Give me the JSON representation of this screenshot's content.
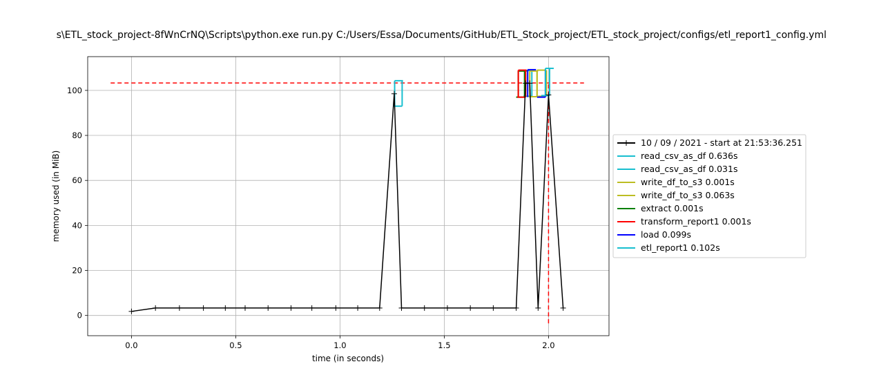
{
  "chart_data": {
    "type": "line",
    "title": "s\\ETL_stock_project-8fWnCrNQ\\Scripts\\python.exe run.py C:/Users/Essa/Documents/GitHub/ETL_Stock_project/ETL_stock_project/configs/etl_report1_config.yml",
    "xlabel": "time (in seconds)",
    "ylabel": "memory used (in MiB)",
    "xlim": [
      -0.21,
      2.29
    ],
    "ylim": [
      -9,
      115
    ],
    "xticks": [
      0.0,
      0.5,
      1.0,
      1.5,
      2.0
    ],
    "xtick_labels": [
      "0.0",
      "0.5",
      "1.0",
      "1.5",
      "2.0"
    ],
    "yticks": [
      0,
      20,
      40,
      60,
      80,
      100
    ],
    "ytick_labels": [
      "0",
      "20",
      "40",
      "60",
      "80",
      "100"
    ],
    "grid": true,
    "legend_position": "center-right outside",
    "series": [
      {
        "name": "10 / 09 / 2021 - start at 21:53:36.251",
        "color": "#000000",
        "marker": "+",
        "x": [
          0.0,
          0.115,
          0.23,
          0.345,
          0.45,
          0.545,
          0.655,
          0.765,
          0.865,
          0.98,
          1.085,
          1.19,
          1.26,
          1.295,
          1.405,
          1.515,
          1.625,
          1.735,
          1.845,
          1.89,
          1.91,
          1.95,
          2.0,
          2.07
        ],
        "y": [
          1.8,
          3.3,
          3.3,
          3.3,
          3.3,
          3.3,
          3.3,
          3.3,
          3.3,
          3.3,
          3.3,
          3.3,
          98.5,
          3.3,
          3.3,
          3.3,
          3.3,
          3.3,
          3.3,
          103.2,
          103.2,
          3.3,
          98,
          3.3
        ]
      }
    ],
    "function_brackets": [
      {
        "name": "read_csv_as_df 0.636s",
        "color": "#17becf",
        "x_start": 1.262,
        "x_end": 1.298,
        "y_start": 93,
        "y_end": 104.3
      },
      {
        "name": "read_csv_as_df 0.031s",
        "color": "#17becf",
        "x_start": 1.89,
        "x_end": 1.92,
        "y_start": 97.4,
        "y_end": 108.8
      },
      {
        "name": "write_df_to_s3 0.001s",
        "color": "#bcbd22",
        "x_start": 1.945,
        "x_end": 1.99,
        "y_start": 97.4,
        "y_end": 109
      },
      {
        "name": "write_df_to_s3 0.063s",
        "color": "#bcbd22",
        "x_start": 1.91,
        "x_end": 1.945,
        "y_start": 97.2,
        "y_end": 108.6
      },
      {
        "name": "extract 0.001s",
        "color": "#008000",
        "x_start": 1.855,
        "x_end": 1.885,
        "y_start": 97,
        "y_end": 108.6
      },
      {
        "name": "transform_report1 0.001s",
        "color": "#ff0000",
        "x_start": 1.855,
        "x_end": 1.89,
        "y_start": 97,
        "y_end": 109
      },
      {
        "name": "load 0.099s",
        "color": "#0000ff",
        "x_start": 1.9,
        "x_end": 1.985,
        "y_start": 97,
        "y_end": 109.2
      },
      {
        "name": "etl_report1 0.102s",
        "color": "#17becf",
        "x_start": 1.985,
        "x_end": 2.005,
        "y_start": 97.7,
        "y_end": 109.8
      }
    ],
    "reference_lines": {
      "max_memory_y": 103.3,
      "max_memory_x_range": [
        -0.1,
        2.17
      ],
      "max_time_x": 2.0,
      "max_time_y_range": [
        -3.5,
        103.3
      ],
      "color": "#ff0000",
      "style": "dashed"
    },
    "legend": [
      {
        "label": "10 / 09 / 2021 - start at 21:53:36.251",
        "color": "#000000",
        "marker": "+"
      },
      {
        "label": "read_csv_as_df 0.636s",
        "color": "#17becf"
      },
      {
        "label": "read_csv_as_df 0.031s",
        "color": "#17becf"
      },
      {
        "label": "write_df_to_s3 0.001s",
        "color": "#bcbd22"
      },
      {
        "label": "write_df_to_s3 0.063s",
        "color": "#bcbd22"
      },
      {
        "label": "extract 0.001s",
        "color": "#008000"
      },
      {
        "label": "transform_report1 0.001s",
        "color": "#ff0000"
      },
      {
        "label": "load 0.099s",
        "color": "#0000ff"
      },
      {
        "label": "etl_report1 0.102s",
        "color": "#17becf"
      }
    ]
  }
}
